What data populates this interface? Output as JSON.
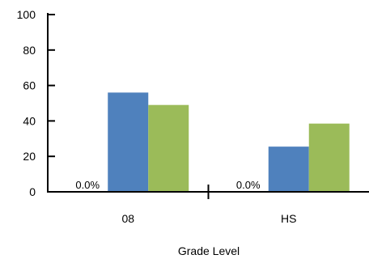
{
  "chart_data": {
    "type": "bar",
    "categories": [
      "08",
      "HS"
    ],
    "series": [
      {
        "values": [
          0.0,
          0.0
        ],
        "color": "#000000",
        "data_labels": [
          "0.0%",
          "0.0%"
        ]
      },
      {
        "values": [
          56,
          25.5
        ],
        "color": "#4f81bd"
      },
      {
        "values": [
          49,
          38.5
        ],
        "color": "#9bbb59"
      }
    ],
    "xlabel": "Grade Level",
    "ylabel": "",
    "ylim": [
      0,
      100
    ],
    "yticks": [
      "0",
      "20",
      "40",
      "60",
      "80",
      "100"
    ],
    "grid": false,
    "legend": "none"
  }
}
